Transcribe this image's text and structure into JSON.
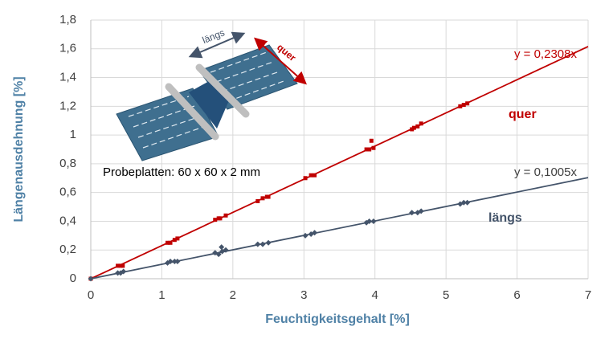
{
  "chart_data": {
    "type": "scatter",
    "xlabel": "Feuchtigkeitsgehalt [%]",
    "ylabel": "Längenausdehnung [%]",
    "xlim": [
      0,
      7
    ],
    "ylim": [
      0,
      1.8
    ],
    "xticks": [
      0,
      1,
      2,
      3,
      4,
      5,
      6,
      7
    ],
    "yticks": [
      0,
      {
        "value": 0.2,
        "label": "0,2"
      },
      {
        "value": 0.4,
        "label": "0,4"
      },
      {
        "value": 0.6,
        "label": "0,6"
      },
      {
        "value": 0.8,
        "label": "0,8"
      },
      1,
      {
        "value": 1.2,
        "label": "1,2"
      },
      {
        "value": 1.4,
        "label": "1,4"
      },
      {
        "value": 1.6,
        "label": "1,6"
      },
      {
        "value": 1.8,
        "label": "1,8"
      }
    ],
    "grid": true,
    "series": [
      {
        "name": "quer",
        "color": "#c00000",
        "marker": "square",
        "x": [
          0,
          0.38,
          0.42,
          0.45,
          1.08,
          1.12,
          1.18,
          1.22,
          1.75,
          1.8,
          1.82,
          1.9,
          2.35,
          2.42,
          2.48,
          2.5,
          3.02,
          3.1,
          3.15,
          3.88,
          3.92,
          3.95,
          3.98,
          4.52,
          4.55,
          4.6,
          4.65,
          5.2,
          5.25,
          5.3
        ],
        "values": [
          0,
          0.09,
          0.09,
          0.09,
          0.25,
          0.25,
          0.27,
          0.28,
          0.41,
          0.42,
          0.42,
          0.44,
          0.54,
          0.56,
          0.57,
          0.57,
          0.7,
          0.72,
          0.72,
          0.9,
          0.9,
          0.96,
          0.91,
          1.04,
          1.05,
          1.06,
          1.08,
          1.2,
          1.21,
          1.22
        ]
      },
      {
        "name": "längs",
        "color": "#44546a",
        "marker": "diamond",
        "x": [
          0,
          0.38,
          0.42,
          0.46,
          1.08,
          1.12,
          1.18,
          1.22,
          1.75,
          1.8,
          1.84,
          1.85,
          1.9,
          2.35,
          2.42,
          2.5,
          3.02,
          3.1,
          3.15,
          3.88,
          3.92,
          3.98,
          4.52,
          4.6,
          4.65,
          5.2,
          5.25,
          5.3
        ],
        "values": [
          0,
          0.04,
          0.04,
          0.05,
          0.11,
          0.12,
          0.12,
          0.12,
          0.18,
          0.17,
          0.22,
          0.19,
          0.2,
          0.24,
          0.24,
          0.25,
          0.3,
          0.31,
          0.32,
          0.39,
          0.4,
          0.4,
          0.46,
          0.46,
          0.47,
          0.52,
          0.53,
          0.53
        ]
      }
    ],
    "trendlines": [
      {
        "label": "y = 0,2308x",
        "slope": 0.2308,
        "color": "#c00000"
      },
      {
        "label": "y = 0,1005x",
        "slope": 0.1005,
        "color": "#44546a"
      }
    ],
    "annotations": [
      "Probeplatten: 60 x 60 x 2 mm"
    ],
    "illustration_labels": [
      "längs",
      "quer"
    ]
  }
}
